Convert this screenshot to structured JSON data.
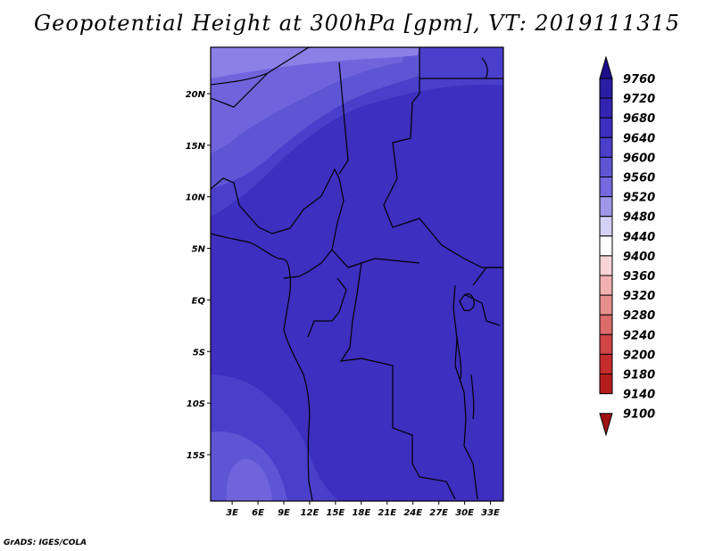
{
  "title": "Geopotential Height at 300hPa [gpm], VT: 2019111315",
  "credit": "GrADS: IGES/COLA",
  "map": {
    "lat_labels": [
      "20N",
      "15N",
      "10N",
      "5N",
      "EQ",
      "5S",
      "10S",
      "15S"
    ],
    "lon_labels": [
      "3E",
      "6E",
      "9E",
      "12E",
      "15E",
      "18E",
      "21E",
      "24E",
      "27E",
      "30E",
      "33E"
    ],
    "lon_range": [
      0.5,
      34.5
    ],
    "lat_range": [
      -19.5,
      24.5
    ]
  },
  "colorbar": {
    "levels": [
      "9760",
      "9720",
      "9680",
      "9640",
      "9600",
      "9560",
      "9520",
      "9480",
      "9440",
      "9400",
      "9360",
      "9320",
      "9280",
      "9240",
      "9200",
      "9180",
      "9140",
      "9100"
    ],
    "colors": [
      "#1e0f8c",
      "#2a1ea5",
      "#3325b3",
      "#3d2fbf",
      "#4a3fca",
      "#5d55d4",
      "#7469df",
      "#9f97ea",
      "#d4d0f6",
      "#ffffff",
      "#fad5d5",
      "#f2b1b1",
      "#e78f8f",
      "#dc6b6b",
      "#d04545",
      "#c62c2c",
      "#b71d1d",
      "#a01212"
    ]
  }
}
